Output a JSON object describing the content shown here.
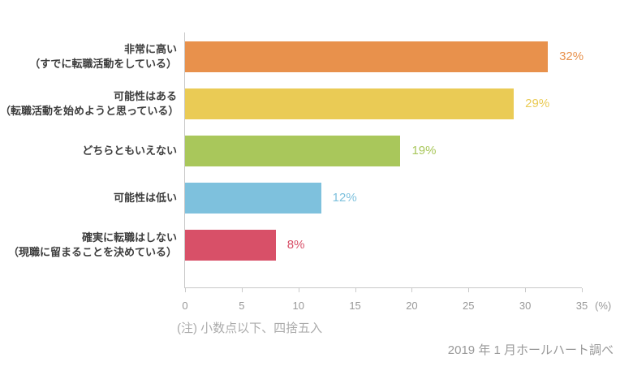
{
  "chart_data": {
    "type": "bar",
    "orientation": "horizontal",
    "title": "",
    "categories": [
      "非常に高い\n（すでに転職活動をしている）",
      "可能性はある\n（転職活動を始めようと思っている）",
      "どちらともいえない",
      "可能性は低い",
      "確実に転職はしない\n（現職に留まることを決めている）"
    ],
    "values": [
      32,
      29,
      19,
      12,
      8
    ],
    "value_labels": [
      "32%",
      "29%",
      "19%",
      "12%",
      "8%"
    ],
    "bar_colors": [
      "#E8914C",
      "#EACB55",
      "#A9C75B",
      "#7EC1DD",
      "#D85068"
    ],
    "xlim": [
      0,
      35
    ],
    "xticks": [
      0,
      5,
      10,
      15,
      20,
      25,
      30,
      35
    ],
    "x_unit_label": "(%)",
    "grid": false,
    "legend": "none",
    "axis_color": "#C9C9C9",
    "tick_label_color": "#999999"
  },
  "footnote": "(注) 小数点以下、四捨五入",
  "source": "2019 年 1 月ホールハート調べ"
}
